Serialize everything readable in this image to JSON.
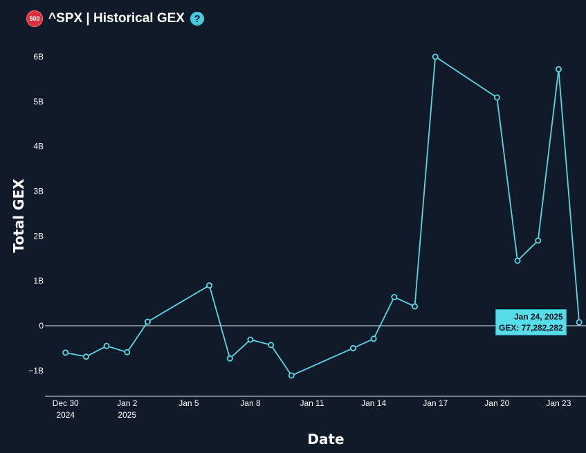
{
  "header": {
    "badge": "500",
    "title": "^SPX | Historical GEX",
    "help": "?"
  },
  "colors": {
    "background": "#101a28",
    "line": "#5fd6e3",
    "tooltip_bg": "#56dde8"
  },
  "tooltip": {
    "date": "Jan 24, 2025",
    "value_label": "GEX: 77,282,282"
  },
  "chart_data": {
    "type": "line",
    "title": "^SPX | Historical GEX",
    "xlabel": "Date",
    "ylabel": "Total GEX",
    "ylim": [
      -1.6,
      6.2
    ],
    "yticks": [
      {
        "value": 6,
        "label": "6B"
      },
      {
        "value": 5,
        "label": "5B"
      },
      {
        "value": 4,
        "label": "4B"
      },
      {
        "value": 3,
        "label": "3B"
      },
      {
        "value": 2,
        "label": "2B"
      },
      {
        "value": 1,
        "label": "1B"
      },
      {
        "value": 0,
        "label": "0"
      },
      {
        "value": -1,
        "label": "−1B"
      }
    ],
    "xticks": [
      {
        "date": "2024-12-30",
        "label": "Dec 30",
        "sublabel": "2024"
      },
      {
        "date": "2025-01-02",
        "label": "Jan 2",
        "sublabel": "2025"
      },
      {
        "date": "2025-01-05",
        "label": "Jan 5",
        "sublabel": ""
      },
      {
        "date": "2025-01-08",
        "label": "Jan 8",
        "sublabel": ""
      },
      {
        "date": "2025-01-11",
        "label": "Jan 11",
        "sublabel": ""
      },
      {
        "date": "2025-01-14",
        "label": "Jan 14",
        "sublabel": ""
      },
      {
        "date": "2025-01-17",
        "label": "Jan 17",
        "sublabel": ""
      },
      {
        "date": "2025-01-20",
        "label": "Jan 20",
        "sublabel": ""
      },
      {
        "date": "2025-01-23",
        "label": "Jan 23",
        "sublabel": ""
      }
    ],
    "xlim": [
      "2024-12-29",
      "2025-01-24T08:00:00"
    ],
    "series": [
      {
        "points": [
          {
            "x": "2024-12-30",
            "y": -0.6
          },
          {
            "x": "2024-12-31",
            "y": -0.69
          },
          {
            "x": "2025-01-01",
            "y": -0.45
          },
          {
            "x": "2025-01-02",
            "y": -0.59
          },
          {
            "x": "2025-01-03",
            "y": 0.09
          },
          {
            "x": "2025-01-06",
            "y": 0.9
          },
          {
            "x": "2025-01-07",
            "y": -0.73
          },
          {
            "x": "2025-01-08",
            "y": -0.31
          },
          {
            "x": "2025-01-09",
            "y": -0.43
          },
          {
            "x": "2025-01-10",
            "y": -1.11
          },
          {
            "x": "2025-01-13",
            "y": -0.5
          },
          {
            "x": "2025-01-14",
            "y": -0.29
          },
          {
            "x": "2025-01-15",
            "y": 0.64
          },
          {
            "x": "2025-01-16",
            "y": 0.43
          },
          {
            "x": "2025-01-17",
            "y": 6.0
          },
          {
            "x": "2025-01-20",
            "y": 5.09
          },
          {
            "x": "2025-01-21",
            "y": 1.45
          },
          {
            "x": "2025-01-22",
            "y": 1.9
          },
          {
            "x": "2025-01-23",
            "y": 5.72
          },
          {
            "x": "2025-01-24",
            "y": 0.077
          }
        ]
      }
    ]
  }
}
